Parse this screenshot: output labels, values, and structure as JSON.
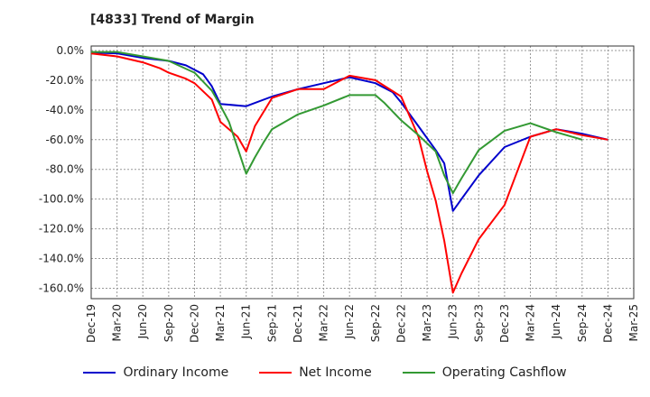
{
  "chart_data": {
    "type": "line",
    "title": "[4833]  Trend of Margin",
    "xlabel": "",
    "ylabel": "",
    "ylim": [
      -167,
      3
    ],
    "y_ticks": [
      0,
      -20,
      -40,
      -60,
      -80,
      -100,
      -120,
      -140,
      -160
    ],
    "y_tick_labels": [
      "0.0%",
      "-20.0%",
      "-40.0%",
      "-60.0%",
      "-80.0%",
      "-100.0%",
      "-120.0%",
      "-140.0%",
      "-160.0%"
    ],
    "x_ticks": [
      "Dec-19",
      "Mar-20",
      "Jun-20",
      "Sep-20",
      "Dec-20",
      "Mar-21",
      "Jun-21",
      "Sep-21",
      "Dec-21",
      "Mar-22",
      "Jun-22",
      "Sep-22",
      "Dec-22",
      "Mar-23",
      "Jun-23",
      "Sep-23",
      "Dec-23",
      "Mar-24",
      "Jun-24",
      "Sep-24",
      "Dec-24",
      "Mar-25"
    ],
    "grid": true,
    "legend_position": "bottom",
    "series": [
      {
        "name": "Ordinary Income",
        "color": "#0000cc",
        "points": [
          [
            "Dec-19",
            -1.5
          ],
          [
            "Mar-20",
            -2
          ],
          [
            "Jun-20",
            -5
          ],
          [
            "Sep-20",
            -7
          ],
          [
            "Nov-20",
            -10
          ],
          [
            "Jan-21",
            -16
          ],
          [
            "Feb-21",
            -24
          ],
          [
            "Mar-21",
            -36
          ],
          [
            "Jun-21",
            -37.5
          ],
          [
            "Sep-21",
            -31
          ],
          [
            "Dec-21",
            -26
          ],
          [
            "Mar-22",
            -22
          ],
          [
            "Jun-22",
            -18
          ],
          [
            "Sep-22",
            -22
          ],
          [
            "Nov-22",
            -28
          ],
          [
            "Dec-22",
            -35
          ],
          [
            "Feb-23",
            -51
          ],
          [
            "Apr-23",
            -67
          ],
          [
            "May-23",
            -76
          ],
          [
            "Jun-23",
            -108
          ],
          [
            "Jul-23",
            -100
          ],
          [
            "Sep-23",
            -84
          ],
          [
            "Dec-23",
            -65
          ],
          [
            "Mar-24",
            -58
          ],
          [
            "Jun-24",
            -53
          ],
          [
            "Sep-24",
            -56
          ],
          [
            "Dec-24",
            -60
          ]
        ]
      },
      {
        "name": "Net Income",
        "color": "#ff0000",
        "points": [
          [
            "Dec-19",
            -2
          ],
          [
            "Mar-20",
            -4
          ],
          [
            "Jun-20",
            -8
          ],
          [
            "Aug-20",
            -12
          ],
          [
            "Sep-20",
            -15
          ],
          [
            "Nov-20",
            -19
          ],
          [
            "Dec-20",
            -22
          ],
          [
            "Feb-21",
            -33
          ],
          [
            "Mar-21",
            -48
          ],
          [
            "May-21",
            -58
          ],
          [
            "Jun-21",
            -68
          ],
          [
            "Jul-21",
            -51
          ],
          [
            "Sep-21",
            -32
          ],
          [
            "Dec-21",
            -26
          ],
          [
            "Mar-22",
            -26
          ],
          [
            "Jun-22",
            -17
          ],
          [
            "Sep-22",
            -20
          ],
          [
            "Dec-22",
            -31
          ],
          [
            "Feb-23",
            -58
          ],
          [
            "Mar-23",
            -81
          ],
          [
            "Apr-23",
            -101
          ],
          [
            "May-23",
            -128
          ],
          [
            "Jun-23",
            -163
          ],
          [
            "Jul-23",
            -150
          ],
          [
            "Sep-23",
            -127
          ],
          [
            "Dec-23",
            -104
          ],
          [
            "Mar-24",
            -58
          ],
          [
            "Jun-24",
            -53
          ],
          [
            "Sep-24",
            -57
          ],
          [
            "Dec-24",
            -60
          ]
        ]
      },
      {
        "name": "Operating Cashflow",
        "color": "#339933",
        "points": [
          [
            "Dec-19",
            -1
          ],
          [
            "Mar-20",
            -1
          ],
          [
            "Jun-20",
            -4
          ],
          [
            "Sep-20",
            -7
          ],
          [
            "Dec-20",
            -15
          ],
          [
            "Feb-21",
            -27
          ],
          [
            "Mar-21",
            -37
          ],
          [
            "Apr-21",
            -48
          ],
          [
            "Jun-21",
            -83
          ],
          [
            "Jul-21",
            -72
          ],
          [
            "Aug-21",
            -62
          ],
          [
            "Sep-21",
            -53
          ],
          [
            "Dec-21",
            -43
          ],
          [
            "Mar-22",
            -37
          ],
          [
            "Jun-22",
            -30
          ],
          [
            "Sep-22",
            -30
          ],
          [
            "Oct-22",
            -35
          ],
          [
            "Dec-22",
            -47
          ],
          [
            "Feb-23",
            -57
          ],
          [
            "Apr-23",
            -68
          ],
          [
            "May-23",
            -84
          ],
          [
            "Jun-23",
            -96
          ],
          [
            "Jul-23",
            -86
          ],
          [
            "Sep-23",
            -67
          ],
          [
            "Dec-23",
            -54
          ],
          [
            "Mar-24",
            -49
          ],
          [
            "Jun-24",
            -55
          ],
          [
            "Sep-24",
            -60
          ]
        ]
      }
    ]
  }
}
